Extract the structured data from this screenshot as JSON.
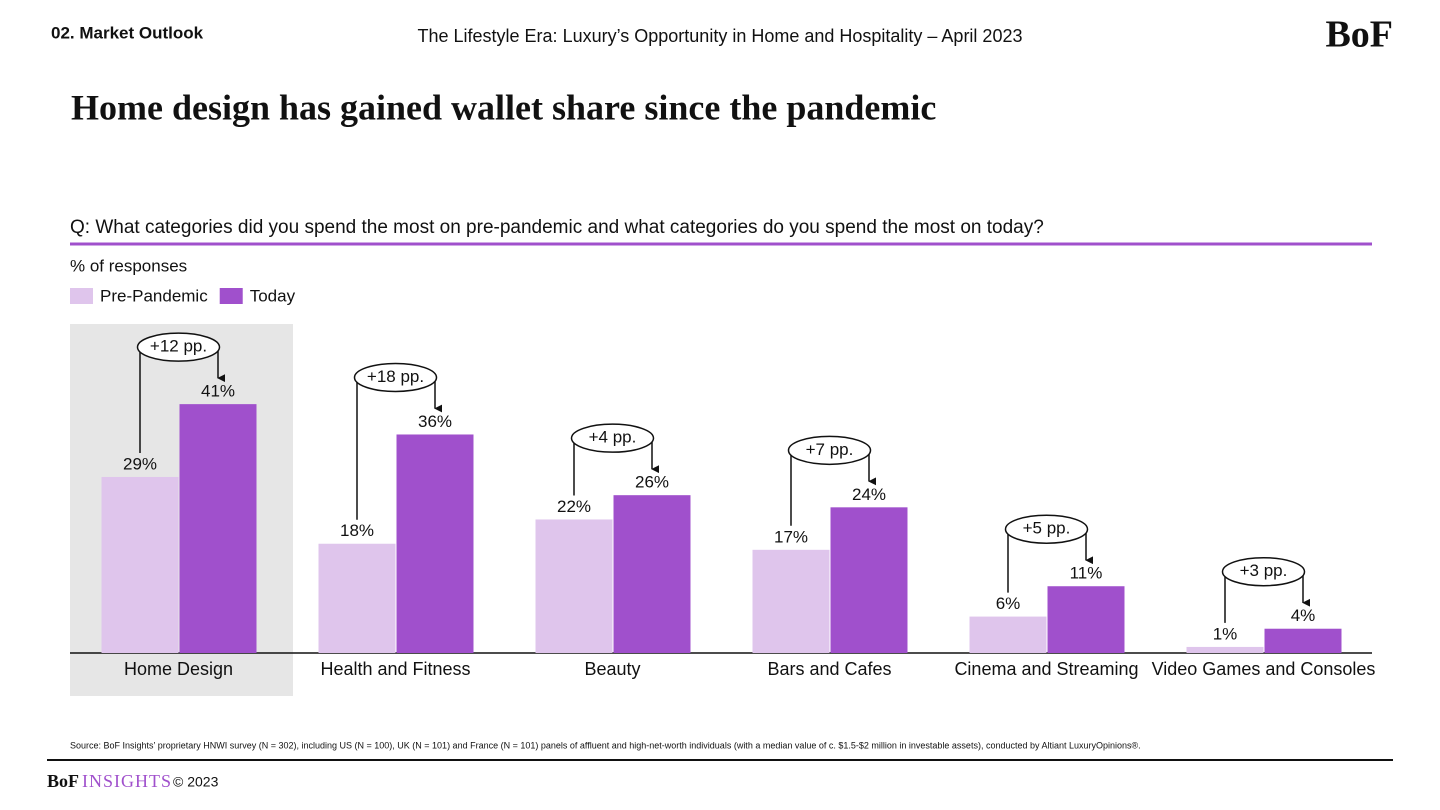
{
  "header": {
    "section": "02. Market Outlook",
    "report": "The Lifestyle Era: Luxury’s Opportunity in Home and Hospitality – April 2023",
    "logo": "BoF"
  },
  "chart_data": {
    "type": "bar",
    "title": "Home design has gained wallet share since the pandemic",
    "question": "Q: What categories did you spend the most on pre-pandemic and what categories do you spend the most on today?",
    "subtitle": "% of responses",
    "categories": [
      "Home Design",
      "Health and Fitness",
      "Beauty",
      "Bars and Cafes",
      "Cinema and Streaming",
      "Video Games and Consoles"
    ],
    "series": [
      {
        "name": "Pre-Pandemic",
        "color": "#dfc5ec",
        "values": [
          29,
          18,
          22,
          17,
          6,
          1
        ],
        "value_labels": [
          "29%",
          "18%",
          "22%",
          "17%",
          "6%",
          "1%"
        ]
      },
      {
        "name": "Today",
        "color": "#a050cc",
        "values": [
          41,
          36,
          26,
          24,
          11,
          4
        ],
        "value_labels": [
          "41%",
          "36%",
          "26%",
          "24%",
          "11%",
          "4%"
        ]
      }
    ],
    "annotations": [
      "+12 pp.",
      "+18 pp.",
      "+4 pp.",
      "+7 pp.",
      "+5 pp.",
      "+3 pp."
    ],
    "legend": "top-left"
  },
  "footer": {
    "source": "Source: BoF Insights’ proprietary HNWI survey (N = 302), including US (N = 100), UK (N = 101) and France (N = 101) panels of affluent and high-net-worth individuals (with a median value of c. $1.5-$2 million in investable assets), conducted by Altiant LuxuryOpinions®.",
    "brand": "BoF",
    "product": "INSIGHTS",
    "copyright": "© 2023"
  }
}
